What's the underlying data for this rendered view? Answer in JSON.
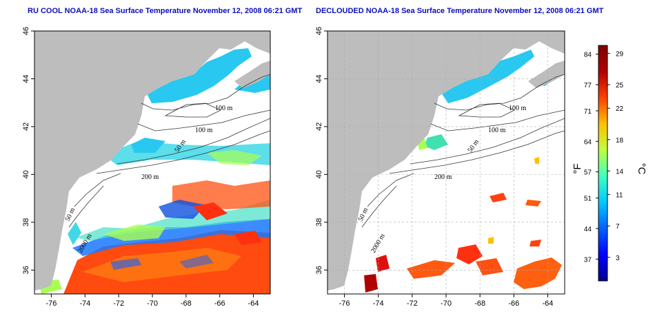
{
  "panels": [
    {
      "title": "RU COOL NOAA-18 Sea Surface Temperature November 12, 2008 06:21 GMT",
      "x_ticks": [
        "-76",
        "-74",
        "-72",
        "-70",
        "-68",
        "-66",
        "-64"
      ],
      "y_ticks": [
        "36",
        "38",
        "40",
        "42",
        "44",
        "46"
      ],
      "contour_labels": [
        "100 m",
        "100 m",
        "50 m",
        "200 m",
        "50 m",
        "2000 m"
      ]
    },
    {
      "title": "DECLOUDED NOAA-18 Sea Surface Temperature November 12, 2008 06:21 GMT",
      "x_ticks": [
        "-76",
        "-74",
        "-72",
        "-70",
        "-68",
        "-66",
        "-64"
      ],
      "y_ticks": [
        "36",
        "38",
        "40",
        "42",
        "44",
        "46"
      ],
      "contour_labels": [
        "100 m",
        "100 m",
        "50 m",
        "200 m",
        "50 m",
        "2000 m"
      ]
    }
  ],
  "colorbar": {
    "fahrenheit_unit": "°F",
    "celsius_unit": "°C",
    "fahrenheit_ticks": [
      "84",
      "77",
      "71",
      "64",
      "57",
      "51",
      "44",
      "37"
    ],
    "celsius_ticks": [
      "29",
      "25",
      "22",
      "18",
      "14",
      "11",
      "7",
      "3"
    ],
    "colors": [
      "#00008f",
      "#0000ff",
      "#0060ff",
      "#00c8ff",
      "#40ffbf",
      "#bfff40",
      "#ffc000",
      "#ff4000",
      "#b00000",
      "#800000"
    ]
  },
  "map_colors": {
    "land": "#bdbdbd",
    "water_clouded": "#ffffff"
  },
  "chart_data": {
    "type": "heatmap",
    "xlabel": "",
    "ylabel": "",
    "xlim": [
      -77,
      -63
    ],
    "ylim": [
      35,
      46
    ],
    "x_ticks": [
      -76,
      -74,
      -72,
      -70,
      -68,
      -66,
      -64
    ],
    "y_ticks": [
      36,
      38,
      40,
      42,
      44,
      46
    ],
    "colorbar_celsius": [
      3,
      7,
      11,
      14,
      18,
      22,
      25,
      29
    ],
    "colorbar_fahrenheit": [
      37,
      44,
      51,
      57,
      64,
      71,
      77,
      84
    ]
  }
}
